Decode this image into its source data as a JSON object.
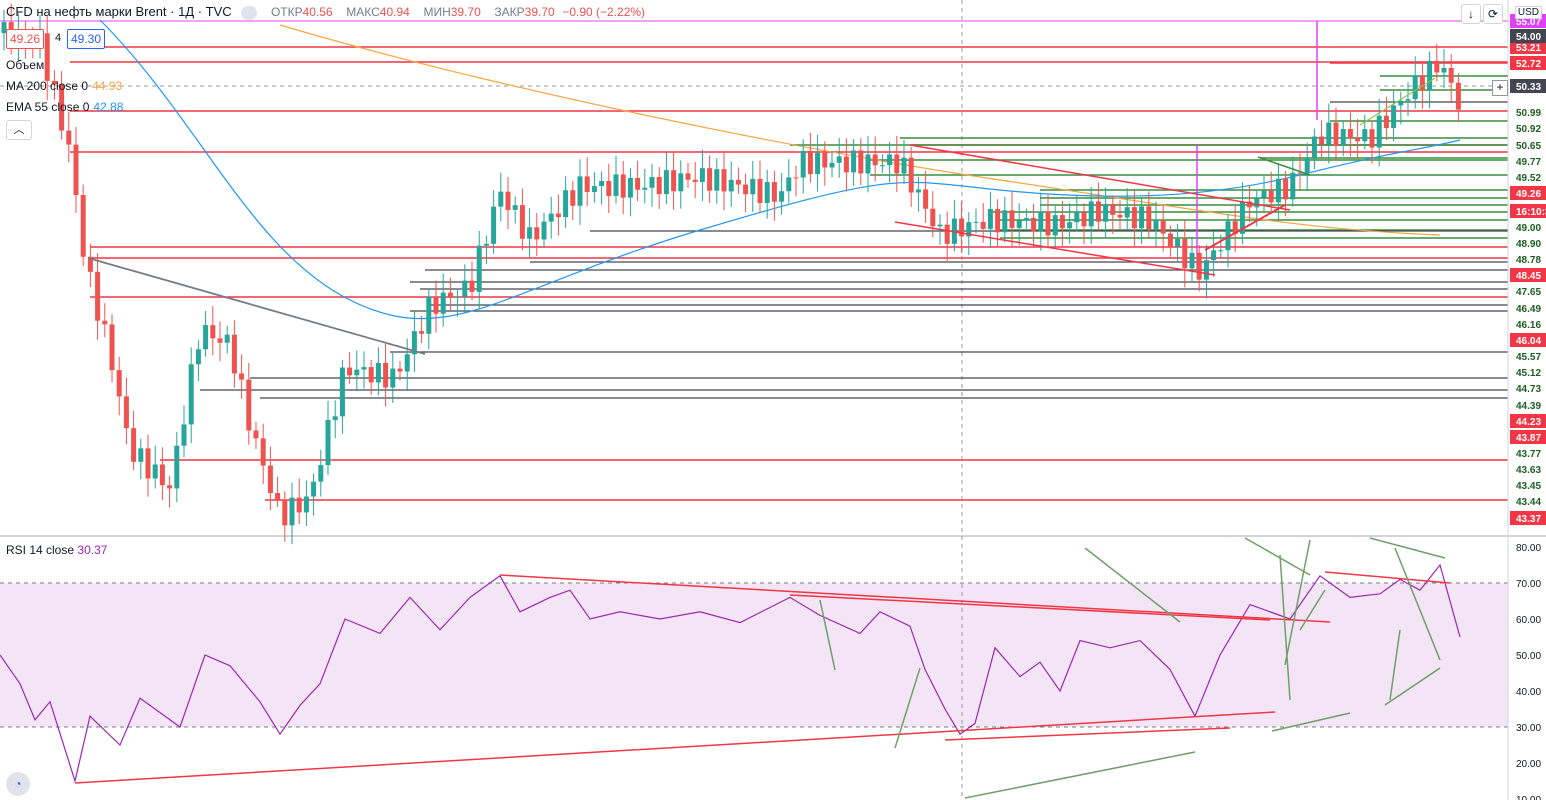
{
  "header": {
    "symbol": "CFD на нефть марки Brent · 1Д · TVC",
    "open_label": "ОТКР",
    "open_value": "40.56",
    "high_label": "МАКС",
    "high_value": "40.94",
    "low_label": "МИН",
    "low_value": "39.70",
    "close_label": "ЗАКР",
    "close_value": "39.70",
    "change": "−0.90 (−2.22%)"
  },
  "quote": {
    "bid": "49.26",
    "spread": "4",
    "ask": "49.30"
  },
  "indicators": {
    "volume": "Объем",
    "ma_label": "MA 200 close 0",
    "ma_value": "44.93",
    "ema_label": "EMA 55 close 0",
    "ema_value": "42.88",
    "rsi_label": "RSI 14 close",
    "rsi_value": "30.37"
  },
  "toolbar": {
    "down_icon": "arrow-down-icon",
    "restore_icon": "restore-icon",
    "currency": "USD"
  },
  "colors": {
    "up": "#26a69a",
    "down": "#ef5350",
    "red_line": "#f23645",
    "green_line": "#388e3c",
    "gray_line": "#434651",
    "rsi": "#9c27b0",
    "rsi_band": "#f3e5f5",
    "ma": "#f7a541",
    "ema": "#2196f3",
    "magenta": "#e040fb"
  },
  "price_axis": {
    "labels": [
      "53.21",
      "52.72",
      "50.33",
      "50.99",
      "50.92",
      "50.65",
      "49.77",
      "49.52",
      "49.26",
      "16:10:3",
      "49.00",
      "48.90",
      "48.78",
      "48.45",
      "47.65",
      "46.49",
      "46.16",
      "46.04",
      "45.57",
      "45.12",
      "44.73",
      "44.39",
      "44.23",
      "43.87",
      "43.77",
      "43.63",
      "43.45",
      "43.44",
      "43.37",
      "54.00",
      "55.07"
    ],
    "red_labels": [
      "53.21",
      "52.72",
      "49.26",
      "16:10:3",
      "48.45",
      "46.04",
      "44.23",
      "43.87",
      "43.37"
    ],
    "green_labels": [
      "50.99",
      "50.92",
      "50.65",
      "49.77",
      "49.52",
      "49.00",
      "48.90",
      "48.78",
      "47.65",
      "46.49",
      "46.16",
      "45.57",
      "45.12",
      "44.73",
      "44.39",
      "43.77",
      "43.63",
      "43.45",
      "43.44"
    ],
    "gray_labels": [
      "50.33",
      "54.00"
    ],
    "magenta_labels": [
      "55.07"
    ]
  },
  "rsi_axis": {
    "labels": [
      "80.00",
      "70.00",
      "60.00",
      "50.00",
      "40.00",
      "30.00",
      "20.00",
      "10.00"
    ]
  },
  "chart_data": {
    "type": "candlestick",
    "series_name": "Brent",
    "y_range": [
      43.3,
      54.2
    ],
    "candles_ohlc_sample": [
      [
        48.7,
        48.8,
        47.4,
        47.5
      ],
      [
        47.5,
        47.8,
        45.6,
        46.0
      ],
      [
        46.0,
        46.3,
        44.4,
        44.6
      ],
      [
        44.6,
        45.6,
        44.3,
        45.4
      ],
      [
        45.4,
        46.9,
        45.0,
        46.7
      ],
      [
        46.7,
        47.4,
        45.6,
        45.9
      ],
      [
        45.9,
        46.2,
        43.4,
        43.5
      ],
      [
        43.5,
        44.4,
        43.2,
        44.3
      ],
      [
        44.3,
        46.3,
        44.1,
        46.1
      ],
      [
        46.1,
        47.1,
        45.7,
        46.9
      ],
      [
        46.9,
        48.7,
        46.5,
        48.5
      ],
      [
        48.5,
        49.3,
        48.2,
        49.1
      ],
      [
        49.1,
        49.5,
        48.7,
        49.3
      ],
      [
        49.3,
        49.9,
        49.0,
        49.7
      ],
      [
        49.7,
        50.0,
        49.3,
        49.5
      ],
      [
        49.5,
        49.9,
        49.2,
        49.6
      ],
      [
        49.6,
        49.8,
        48.9,
        49.0
      ],
      [
        49.0,
        49.5,
        48.6,
        49.3
      ],
      [
        49.3,
        49.6,
        48.9,
        49.1
      ],
      [
        49.1,
        49.3,
        48.3,
        48.5
      ],
      [
        48.5,
        49.4,
        48.4,
        49.3
      ],
      [
        49.3,
        50.1,
        49.1,
        49.9
      ],
      [
        49.9,
        51.3,
        49.8,
        51.2
      ],
      [
        51.2,
        51.5,
        50.9,
        51.3
      ],
      [
        51.3,
        52.6,
        51.1,
        52.4
      ],
      [
        52.4,
        52.7,
        51.4,
        51.5
      ]
    ]
  }
}
